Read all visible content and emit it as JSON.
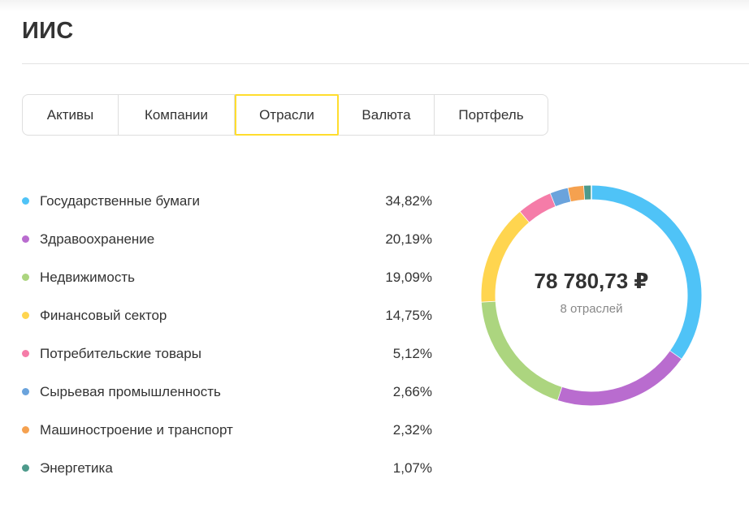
{
  "header": {
    "title": "ИИС"
  },
  "tabs": [
    {
      "label": "Активы",
      "active": false
    },
    {
      "label": "Компании",
      "active": false
    },
    {
      "label": "Отрасли",
      "active": true
    },
    {
      "label": "Валюта",
      "active": false
    },
    {
      "label": "Портфель",
      "active": false
    }
  ],
  "summary": {
    "total": "78 780,73 ₽",
    "subtitle": "8 отраслей"
  },
  "chart_data": {
    "type": "pie",
    "categories": [
      "Государственные бумаги",
      "Здравоохранение",
      "Недвижимость",
      "Финансовый сектор",
      "Потребительские товары",
      "Сырьевая промышленность",
      "Машиностроение и транспорт",
      "Энергетика"
    ],
    "labels": [
      "34,82%",
      "20,19%",
      "19,09%",
      "14,75%",
      "5,12%",
      "2,66%",
      "2,32%",
      "1,07%"
    ],
    "values": [
      34.82,
      20.19,
      19.09,
      14.75,
      5.12,
      2.66,
      2.32,
      1.07
    ],
    "colors": [
      "#4fc3f7",
      "#b96ccf",
      "#acd57f",
      "#ffd54f",
      "#f57ca8",
      "#6aa3dc",
      "#f5a14f",
      "#4d9a8b"
    ],
    "start_angle_deg": 0,
    "direction": "clockwise",
    "legend_position": "left"
  }
}
